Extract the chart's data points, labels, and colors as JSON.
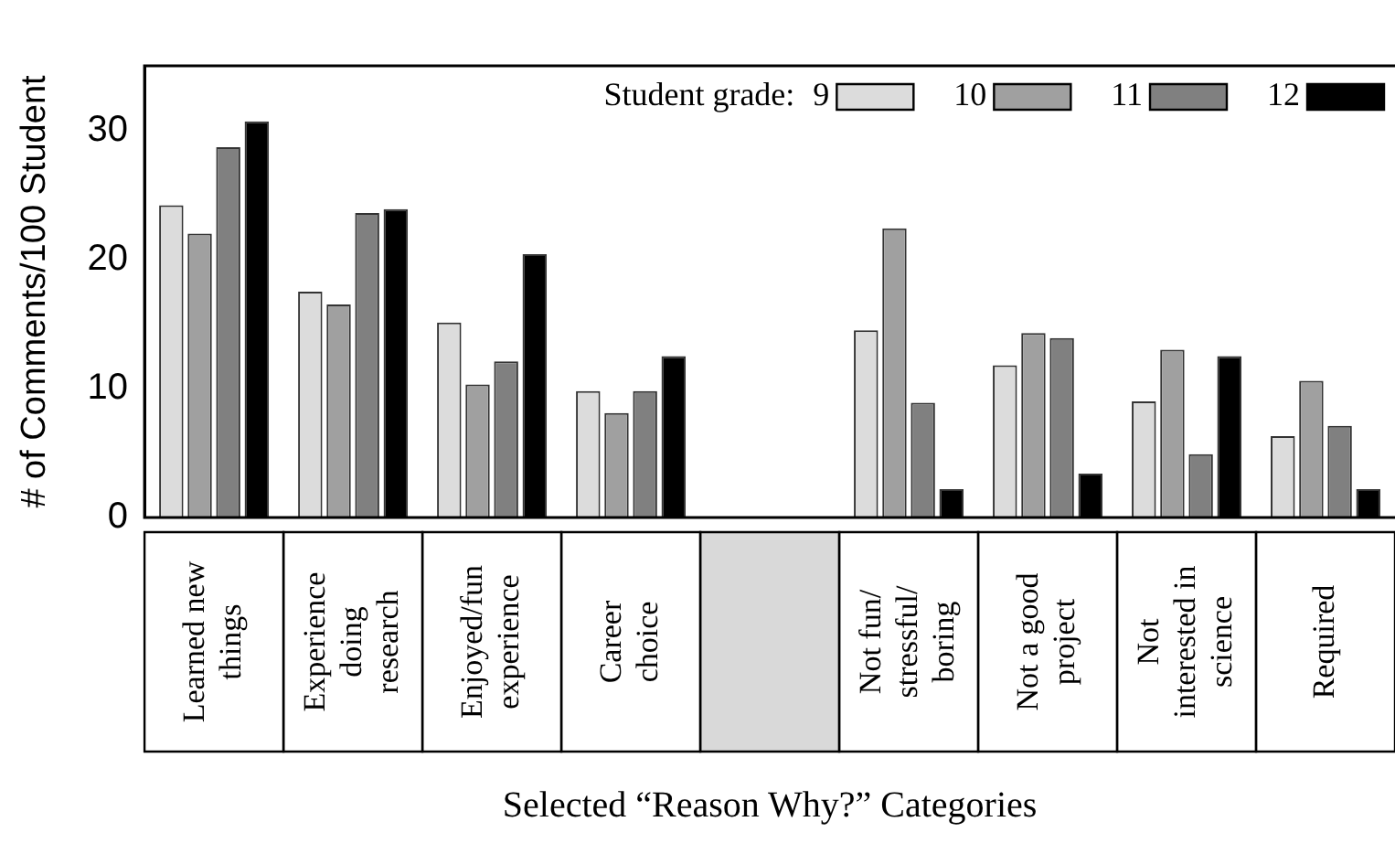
{
  "chart_data": {
    "type": "bar",
    "xlabel": "Selected “Reason Why?” Categories",
    "ylabel": "# of Comments/100 Student",
    "legend_title": "Student grade:",
    "categories": [
      "Learned new things",
      "Experience doing research",
      "Enjoyed/fun experience",
      "Career choice",
      null,
      "Not fun/ stressful/ boring",
      "Not a good project",
      "Not interested in science",
      "Required"
    ],
    "series": [
      {
        "name": "9",
        "color": "#dcdcdc",
        "values": [
          24.2,
          17.5,
          15.1,
          9.8,
          null,
          14.5,
          11.8,
          9.0,
          6.3
        ]
      },
      {
        "name": "10",
        "color": "#a0a0a0",
        "values": [
          22.0,
          16.5,
          10.3,
          8.1,
          null,
          22.4,
          14.3,
          13.0,
          10.6
        ]
      },
      {
        "name": "11",
        "color": "#808080",
        "values": [
          28.7,
          23.6,
          12.1,
          9.8,
          null,
          8.9,
          13.9,
          4.9,
          7.1
        ]
      },
      {
        "name": "12",
        "color": "#000000",
        "values": [
          30.7,
          23.9,
          20.4,
          12.5,
          null,
          2.2,
          3.4,
          12.5,
          2.2
        ]
      }
    ],
    "ylim": [
      0,
      35
    ],
    "yticks": [
      0,
      10,
      20,
      30
    ],
    "grid": false,
    "legend": "top right"
  }
}
